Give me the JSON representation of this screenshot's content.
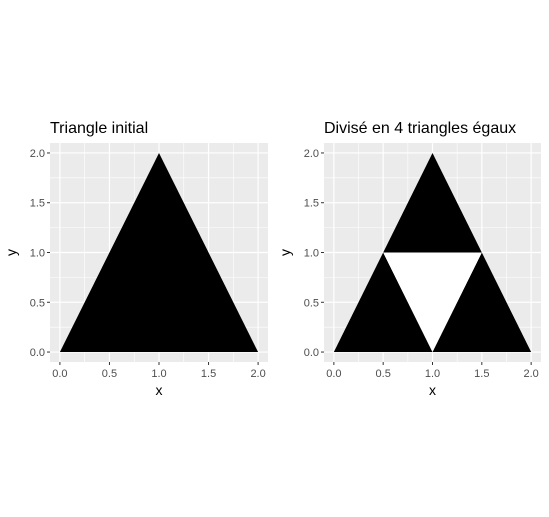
{
  "chart_data": [
    {
      "type": "polygon",
      "title": "Triangle initial",
      "xlabel": "x",
      "ylabel": "y",
      "xlim": [
        -0.1,
        2.1
      ],
      "ylim": [
        -0.1,
        2.1
      ],
      "xticks": [
        0.0,
        0.5,
        1.0,
        1.5,
        2.0
      ],
      "yticks": [
        0.0,
        0.5,
        1.0,
        1.5,
        2.0
      ],
      "xtick_labels": [
        "0.0",
        "0.5",
        "1.0",
        "1.5",
        "2.0"
      ],
      "ytick_labels": [
        "0.0",
        "0.5",
        "1.0",
        "1.5",
        "2.0"
      ],
      "grid": true,
      "background": "#ebebeb",
      "polygons": [
        {
          "fill": "#000000",
          "points": [
            [
              0,
              0
            ],
            [
              1,
              2
            ],
            [
              2,
              0
            ]
          ]
        }
      ]
    },
    {
      "type": "polygon",
      "title": "Divisé en 4 triangles égaux",
      "xlabel": "x",
      "ylabel": "y",
      "xlim": [
        -0.1,
        2.1
      ],
      "ylim": [
        -0.1,
        2.1
      ],
      "xticks": [
        0.0,
        0.5,
        1.0,
        1.5,
        2.0
      ],
      "yticks": [
        0.0,
        0.5,
        1.0,
        1.5,
        2.0
      ],
      "xtick_labels": [
        "0.0",
        "0.5",
        "1.0",
        "1.5",
        "2.0"
      ],
      "ytick_labels": [
        "0.0",
        "0.5",
        "1.0",
        "1.5",
        "2.0"
      ],
      "grid": true,
      "background": "#ebebeb",
      "polygons": [
        {
          "fill": "#000000",
          "points": [
            [
              0,
              0
            ],
            [
              0.5,
              1
            ],
            [
              1,
              0
            ]
          ]
        },
        {
          "fill": "#000000",
          "points": [
            [
              1,
              0
            ],
            [
              1.5,
              1
            ],
            [
              2,
              0
            ]
          ]
        },
        {
          "fill": "#000000",
          "points": [
            [
              0.5,
              1
            ],
            [
              1,
              2
            ],
            [
              1.5,
              1
            ]
          ]
        },
        {
          "fill": "#ffffff",
          "points": [
            [
              0.5,
              1
            ],
            [
              1,
              0
            ],
            [
              1.5,
              1
            ]
          ]
        }
      ]
    }
  ]
}
